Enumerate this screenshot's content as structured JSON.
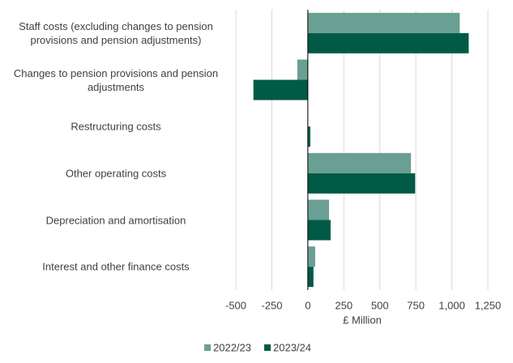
{
  "chart_data": {
    "type": "hbar",
    "categories": [
      "Staff costs (excluding changes to pension provisions and pension adjustments)",
      "Changes to pension provisions and pension adjustments",
      "Restructuring costs",
      "Other operating costs",
      "Depreciation and amortisation",
      "Interest and other finance costs"
    ],
    "series": [
      {
        "name": "2022/23",
        "color": "#6a9f94",
        "values": [
          1055,
          -73,
          0,
          716,
          147,
          51
        ]
      },
      {
        "name": "2023/24",
        "color": "#005a46",
        "values": [
          1117,
          -378,
          17,
          745,
          158,
          39
        ]
      }
    ],
    "xlabel": "£ Million",
    "xlim": [
      -500,
      1250
    ],
    "xticks": [
      -500,
      -250,
      0,
      250,
      500,
      750,
      {
        "value": 1000,
        "label": "1,000"
      },
      {
        "value": 1250,
        "label": "1,250"
      }
    ],
    "grid": true,
    "legend": "bottom"
  }
}
